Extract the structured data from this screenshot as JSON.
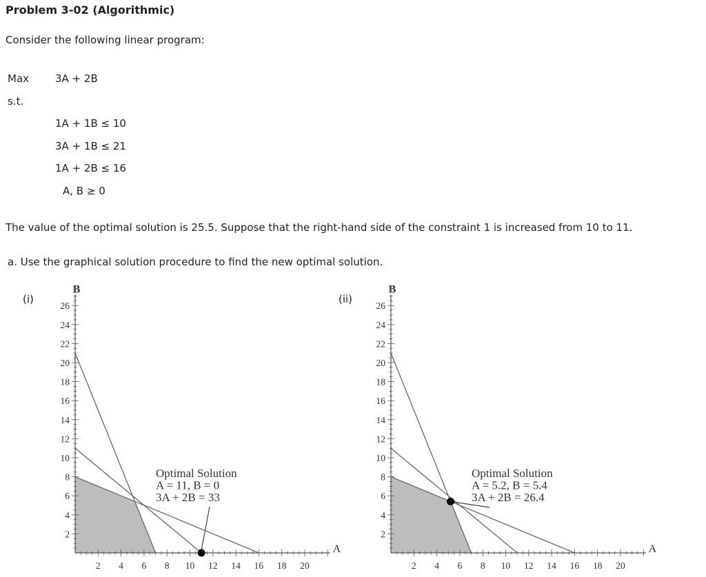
{
  "title": "Problem 3-02 (Algorithmic)",
  "intro": "Consider the following linear program:",
  "lp": {
    "max_label": "Max",
    "objective": "3A + 2B",
    "st_label": "s.t.",
    "constraints": [
      "1A + 1B ≤ 10",
      "3A + 1B ≤ 21",
      "1A + 2B ≤ 16"
    ],
    "nonneg": "A, B ≥ 0"
  },
  "optimal_text": "The value of the optimal solution is 25.5. Suppose that the right-hand side of the constraint 1 is increased from 10 to 11.",
  "part_a": "a. Use the graphical solution procedure to find the new optimal solution.",
  "graphs": [
    {
      "label": "(i)",
      "y_axis_label": "B",
      "x_axis_label": "A",
      "y_ticks": [
        "26",
        "24",
        "22",
        "20",
        "18",
        "16",
        "14",
        "12",
        "10",
        "8",
        "6",
        "4",
        "2"
      ],
      "x_ticks": [
        "2",
        "4",
        "6",
        "8",
        "10",
        "12",
        "14",
        "16",
        "18",
        "20"
      ],
      "annotation": [
        "Optimal Solution",
        "A = 11, B = 0",
        "3A + 2B = 33"
      ],
      "point": [
        11,
        0
      ],
      "feasible_region": [
        [
          0,
          0
        ],
        [
          0,
          8
        ],
        [
          5.2,
          5.4
        ],
        [
          7,
          0
        ]
      ]
    },
    {
      "label": "(ii)",
      "y_axis_label": "B",
      "x_axis_label": "A",
      "y_ticks": [
        "26",
        "24",
        "22",
        "20",
        "18",
        "16",
        "14",
        "12",
        "10",
        "8",
        "6",
        "4",
        "2"
      ],
      "x_ticks": [
        "2",
        "4",
        "6",
        "8",
        "10",
        "12",
        "14",
        "16",
        "18",
        "20"
      ],
      "annotation": [
        "Optimal Solution",
        "A = 5.2, B = 5.4",
        "3A + 2B = 26.4"
      ],
      "point": [
        5.2,
        5.4
      ],
      "feasible_region": [
        [
          0,
          0
        ],
        [
          0,
          8
        ],
        [
          5.2,
          5.4
        ],
        [
          7,
          0
        ]
      ]
    }
  ]
}
